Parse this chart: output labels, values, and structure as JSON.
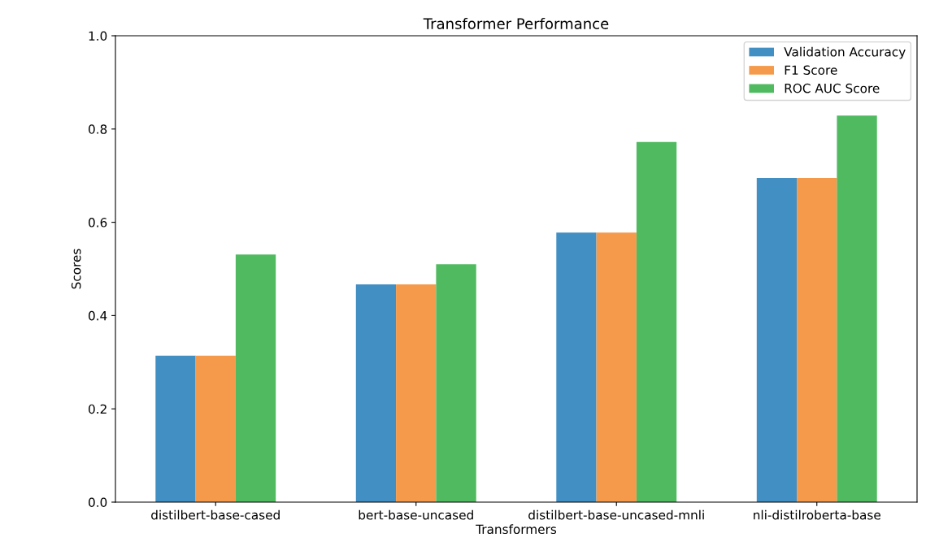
{
  "chart_data": {
    "type": "bar",
    "title": "Transformer Performance",
    "xlabel": "Transformers",
    "ylabel": "Scores",
    "categories": [
      "distilbert-base-cased",
      "bert-base-uncased",
      "distilbert-base-uncased-mnli",
      "nli-distilroberta-base"
    ],
    "series": [
      {
        "name": "Validation Accuracy",
        "color": "#428fc3",
        "values": [
          0.314,
          0.467,
          0.578,
          0.695
        ]
      },
      {
        "name": "F1 Score",
        "color": "#f59a4a",
        "values": [
          0.314,
          0.467,
          0.578,
          0.695
        ]
      },
      {
        "name": "ROC AUC Score",
        "color": "#4fba5f",
        "values": [
          0.531,
          0.51,
          0.772,
          0.829
        ]
      }
    ],
    "ylim": [
      0,
      1.0
    ],
    "yticks": [
      {
        "value": 0,
        "label": "0.0"
      },
      0.2,
      0.4,
      0.6,
      0.8,
      {
        "value": 1.0,
        "label": "1.0"
      }
    ],
    "legend": "top right",
    "grid": false
  }
}
